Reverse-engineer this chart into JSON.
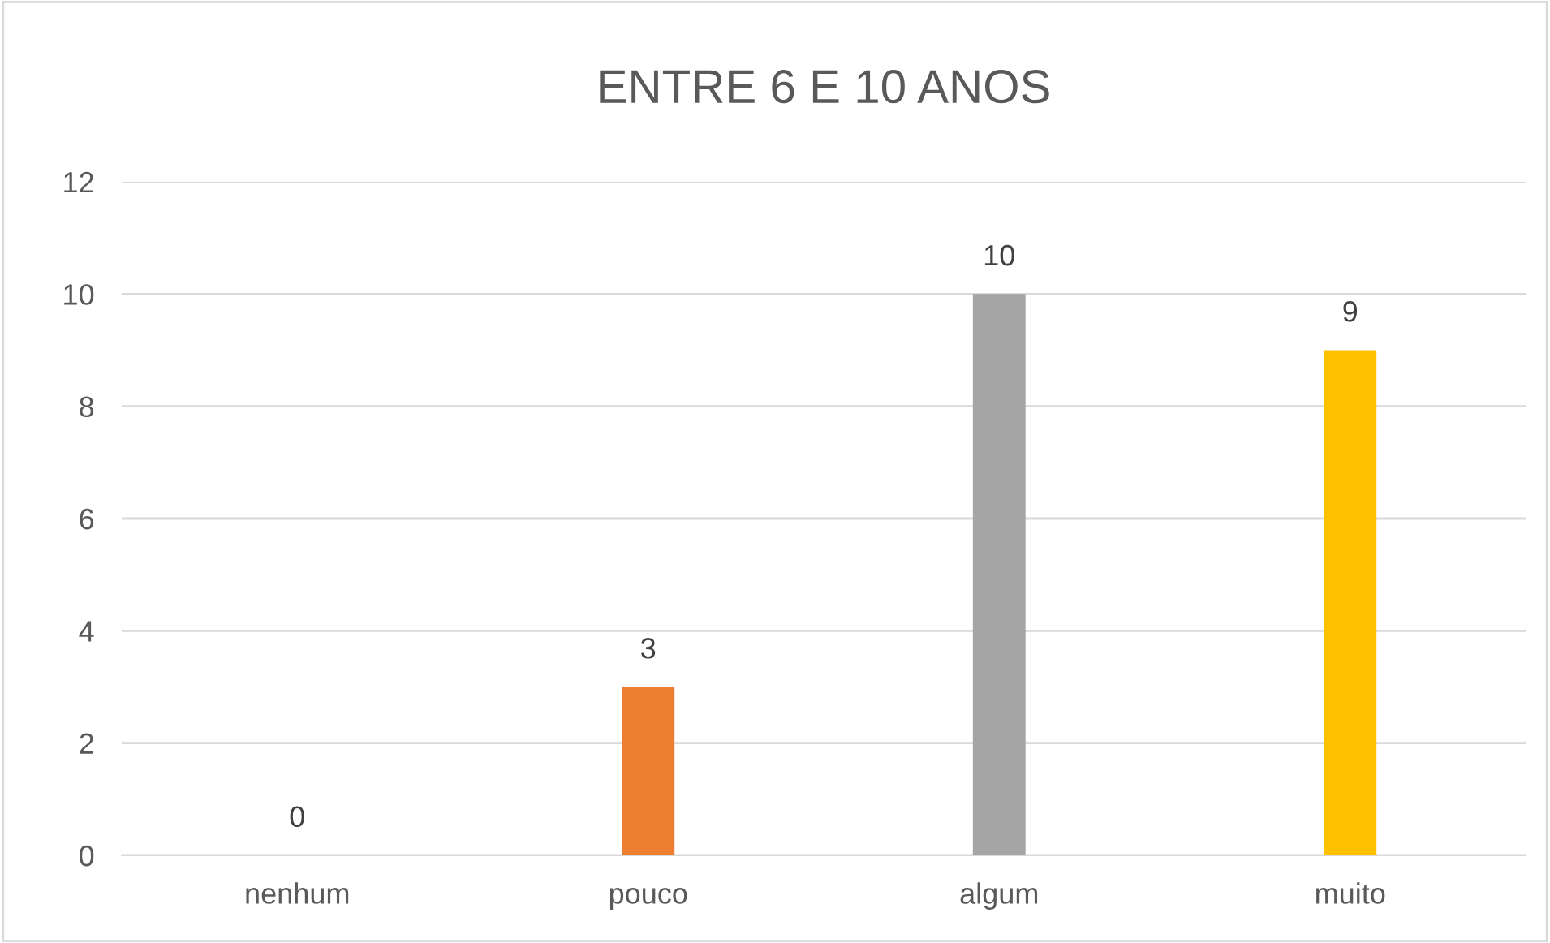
{
  "chart_data": {
    "type": "bar",
    "title": "ENTRE 6 E 10 ANOS",
    "categories": [
      "nenhum",
      "pouco",
      "algum",
      "muito"
    ],
    "values": [
      0,
      3,
      10,
      9
    ],
    "colors": [
      "#4472c4",
      "#ed7d31",
      "#a5a5a5",
      "#ffc000"
    ],
    "ylim": [
      0,
      12
    ],
    "yticks": [
      0,
      2,
      4,
      6,
      8,
      10,
      12
    ],
    "grid": "y",
    "data_labels": true
  }
}
